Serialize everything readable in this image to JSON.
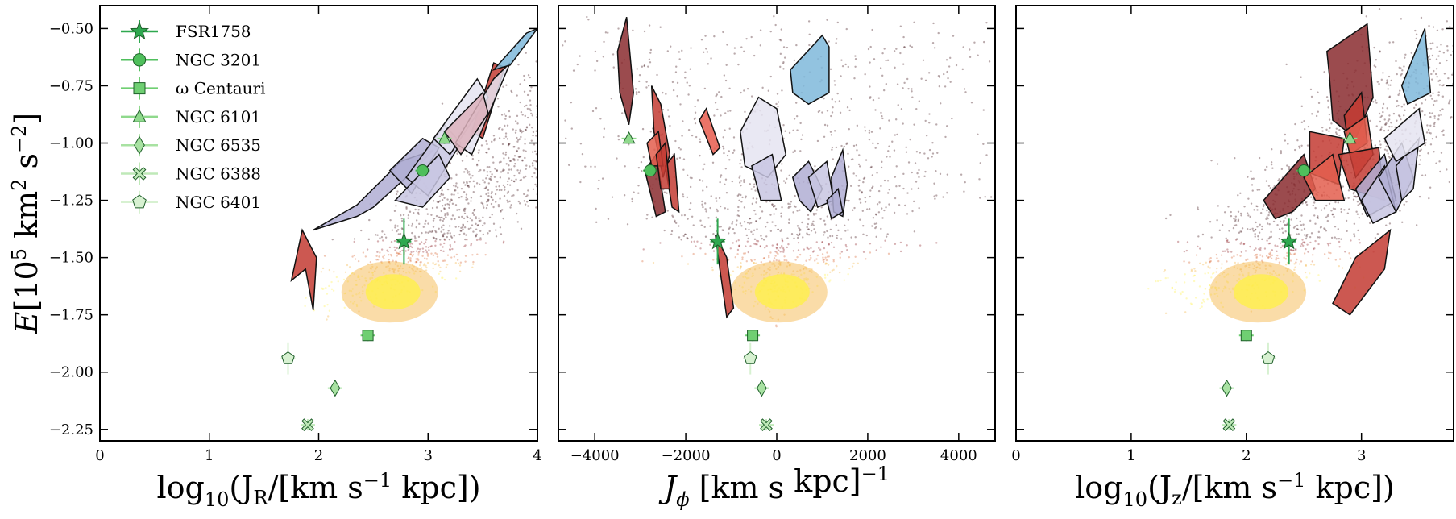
{
  "chart_data": {
    "type": "scatter",
    "shared_y": {
      "label_E": "E",
      "label_unit_a": "[10",
      "label_sup5": "5",
      "label_unit_b": " km",
      "label_sup2": "2",
      "label_unit_c": " s",
      "label_supm2": "−2",
      "label_unit_d": "]",
      "range": [
        -2.3,
        -0.4
      ],
      "ticks": [
        -0.5,
        -0.75,
        -1.0,
        -1.25,
        -1.5,
        -1.75,
        -2.0,
        -2.25
      ],
      "tick_labels": [
        "−0.50",
        "−0.75",
        "−1.00",
        "−1.25",
        "−1.50",
        "−1.75",
        "−2.00",
        "−2.25"
      ]
    },
    "panels": [
      {
        "id": "jr",
        "xlabel_main": "log",
        "xlabel_sub": "10",
        "xlabel_rest": "(J",
        "xlabel_sub2": "R",
        "xlabel_rest2": "/[km s",
        "xlabel_sup": "−1",
        "xlabel_rest3": " kpc])",
        "xlim": [
          0,
          4
        ],
        "xticks": [
          0,
          1,
          2,
          3,
          4
        ],
        "xtick_labels": [
          "0",
          "1",
          "2",
          "3",
          "4"
        ]
      },
      {
        "id": "jphi",
        "xlabel_main": "J",
        "xlabel_sub": "ϕ",
        "xlabel_rest": " [km s",
        "xlabel_sup": "−1",
        "xlabel_rest2": " kpc]",
        "xlim": [
          -4800,
          4800
        ],
        "xticks": [
          -4000,
          -2000,
          0,
          2000,
          4000
        ],
        "xtick_labels": [
          "−4000",
          "−2000",
          "0",
          "2000",
          "4000"
        ]
      },
      {
        "id": "jz",
        "xlabel_main": "log",
        "xlabel_sub": "10",
        "xlabel_rest": "(J",
        "xlabel_sub2": "z",
        "xlabel_rest2": "/[km s",
        "xlabel_sup": "−1",
        "xlabel_rest3": " kpc])",
        "xlim": [
          0,
          3.8
        ],
        "xticks": [
          0,
          1,
          2,
          3
        ],
        "xtick_labels": [
          "0",
          "1",
          "2",
          "3"
        ]
      }
    ],
    "legend": {
      "placement": "top-left",
      "entries": [
        {
          "name": "FSR1758",
          "marker": "star",
          "color": "#2ea84f"
        },
        {
          "name": "NGC 3201",
          "marker": "circle",
          "color": "#4fbf5c"
        },
        {
          "name": "ω Centauri",
          "marker": "square",
          "color": "#6fcf72"
        },
        {
          "name": "NGC 6101",
          "marker": "triangle",
          "color": "#8fd98c"
        },
        {
          "name": "NGC 6535",
          "marker": "diamond",
          "color": "#a8e2a2"
        },
        {
          "name": "NGC 6388",
          "marker": "cross",
          "color": "#bfe9b8"
        },
        {
          "name": "NGC 6401",
          "marker": "pentagon",
          "color": "#d7f1d1"
        }
      ]
    },
    "clusters": [
      {
        "name": "FSR1758",
        "E": -1.43,
        "jr": 2.78,
        "jphi": -1300,
        "jz": 2.37,
        "errE": 0.1
      },
      {
        "name": "NGC 3201",
        "E": -1.12,
        "jr": 2.95,
        "jphi": -2780,
        "jz": 2.5,
        "errE": 0.0
      },
      {
        "name": "ω Centauri",
        "E": -1.84,
        "jr": 2.45,
        "jphi": -530,
        "jz": 2.0,
        "errE": 0.0
      },
      {
        "name": "NGC 6101",
        "E": -0.98,
        "jr": 3.15,
        "jphi": -3250,
        "jz": 2.9,
        "errE": 0.0
      },
      {
        "name": "NGC 6535",
        "E": -2.07,
        "jr": 2.15,
        "jphi": -330,
        "jz": 1.83,
        "errE": 0.0
      },
      {
        "name": "NGC 6388",
        "E": -2.23,
        "jr": 1.9,
        "jphi": -230,
        "jz": 1.85,
        "errE": 0.0
      },
      {
        "name": "NGC 6401",
        "E": -1.94,
        "jr": 1.72,
        "jphi": -580,
        "jz": 2.19,
        "errE": 0.07
      }
    ],
    "density_background": {
      "colormap": [
        "#3a0b12",
        "#8b1f24",
        "#d7602f",
        "#f4b13d",
        "#fff04a"
      ],
      "core": {
        "jr": 2.65,
        "jphi": 50,
        "jz": 2.1,
        "E": -1.65
      }
    },
    "polygons": {
      "jr": [
        {
          "color": "#c33b32",
          "pts": [
            [
              1.75,
              -1.6
            ],
            [
              1.85,
              -1.38
            ],
            [
              1.98,
              -1.5
            ],
            [
              1.95,
              -1.73
            ],
            [
              1.88,
              -1.55
            ]
          ]
        },
        {
          "color": "#c33b32",
          "pts": [
            [
              3.4,
              -0.95
            ],
            [
              3.6,
              -0.65
            ],
            [
              3.7,
              -0.67
            ],
            [
              3.5,
              -0.98
            ]
          ]
        },
        {
          "color": "#b0aed4",
          "pts": [
            [
              1.95,
              -1.38
            ],
            [
              2.35,
              -1.27
            ],
            [
              2.75,
              -1.08
            ],
            [
              3.05,
              -1.03
            ],
            [
              2.8,
              -1.15
            ],
            [
              2.5,
              -1.28
            ],
            [
              2.35,
              -1.32
            ]
          ]
        },
        {
          "color": "#b0aed4",
          "pts": [
            [
              2.65,
              -1.12
            ],
            [
              2.95,
              -0.98
            ],
            [
              3.1,
              -1.02
            ],
            [
              2.85,
              -1.22
            ]
          ]
        },
        {
          "color": "#c8c6e2",
          "pts": [
            [
              2.8,
              -1.15
            ],
            [
              3.15,
              -0.92
            ],
            [
              3.3,
              -1.0
            ],
            [
              3.0,
              -1.23
            ]
          ]
        },
        {
          "color": "#c8c6e2",
          "pts": [
            [
              2.7,
              -1.25
            ],
            [
              3.1,
              -1.05
            ],
            [
              3.2,
              -1.15
            ],
            [
              2.95,
              -1.28
            ]
          ]
        },
        {
          "color": "#e5e4f1",
          "pts": [
            [
              3.05,
              -0.98
            ],
            [
              3.45,
              -0.72
            ],
            [
              3.55,
              -0.8
            ],
            [
              3.2,
              -1.05
            ]
          ]
        },
        {
          "color": "#e5e4f1",
          "pts": [
            [
              3.25,
              -1.0
            ],
            [
              3.6,
              -0.72
            ],
            [
              3.75,
              -0.65
            ],
            [
              3.4,
              -1.05
            ]
          ]
        },
        {
          "color": "#dcb1bc",
          "pts": [
            [
              3.15,
              -0.95
            ],
            [
              3.5,
              -0.78
            ],
            [
              3.55,
              -0.87
            ],
            [
              3.3,
              -1.05
            ]
          ]
        },
        {
          "color": "#7fb8da",
          "pts": [
            [
              3.6,
              -0.68
            ],
            [
              3.9,
              -0.52
            ],
            [
              4.0,
              -0.5
            ],
            [
              3.75,
              -0.66
            ]
          ]
        }
      ],
      "jphi": [
        {
          "color": "#8a2b2f",
          "pts": [
            [
              -3500,
              -0.6
            ],
            [
              -3300,
              -0.45
            ],
            [
              -3150,
              -0.78
            ],
            [
              -3250,
              -0.92
            ],
            [
              -3450,
              -0.78
            ]
          ]
        },
        {
          "color": "#8a2b2f",
          "pts": [
            [
              -2900,
              -1.12
            ],
            [
              -2650,
              -1.05
            ],
            [
              -2450,
              -1.3
            ],
            [
              -2650,
              -1.32
            ]
          ]
        },
        {
          "color": "#c33b32",
          "pts": [
            [
              -2750,
              -0.75
            ],
            [
              -2550,
              -0.83
            ],
            [
              -2350,
              -1.05
            ],
            [
              -2500,
              -1.15
            ],
            [
              -2700,
              -0.95
            ]
          ]
        },
        {
          "color": "#c33b32",
          "pts": [
            [
              -2450,
              -1.1
            ],
            [
              -2250,
              -1.05
            ],
            [
              -2150,
              -1.3
            ],
            [
              -2300,
              -1.28
            ]
          ]
        },
        {
          "color": "#e35e4e",
          "pts": [
            [
              -2850,
              -1.0
            ],
            [
              -2600,
              -0.95
            ],
            [
              -2500,
              -1.1
            ],
            [
              -2750,
              -1.1
            ]
          ]
        },
        {
          "color": "#c33b32",
          "pts": [
            [
              -2650,
              -1.05
            ],
            [
              -2450,
              -1.0
            ],
            [
              -2350,
              -1.2
            ],
            [
              -2550,
              -1.2
            ]
          ]
        },
        {
          "color": "#e85c4e",
          "pts": [
            [
              -1700,
              -0.9
            ],
            [
              -1550,
              -0.85
            ],
            [
              -1250,
              -1.02
            ],
            [
              -1400,
              -1.05
            ]
          ]
        },
        {
          "color": "#c33b32",
          "pts": [
            [
              -1350,
              -1.4
            ],
            [
              -1100,
              -1.5
            ],
            [
              -950,
              -1.72
            ],
            [
              -1100,
              -1.76
            ],
            [
              -1250,
              -1.55
            ]
          ]
        },
        {
          "color": "#e5e4f1",
          "pts": [
            [
              -800,
              -0.95
            ],
            [
              -400,
              -0.8
            ],
            [
              0,
              -0.85
            ],
            [
              200,
              -1.05
            ],
            [
              -200,
              -1.15
            ],
            [
              -700,
              -1.1
            ]
          ]
        },
        {
          "color": "#c8c6e2",
          "pts": [
            [
              -550,
              -1.1
            ],
            [
              -100,
              -1.05
            ],
            [
              100,
              -1.25
            ],
            [
              -350,
              -1.25
            ]
          ]
        },
        {
          "color": "#b0aed4",
          "pts": [
            [
              350,
              -1.15
            ],
            [
              700,
              -1.08
            ],
            [
              1000,
              -1.2
            ],
            [
              750,
              -1.3
            ],
            [
              500,
              -1.25
            ]
          ]
        },
        {
          "color": "#c8c6e2",
          "pts": [
            [
              700,
              -1.15
            ],
            [
              1100,
              -1.08
            ],
            [
              1250,
              -1.25
            ],
            [
              900,
              -1.28
            ]
          ]
        },
        {
          "color": "#b0aed4",
          "pts": [
            [
              1200,
              -1.15
            ],
            [
              1450,
              -1.03
            ],
            [
              1550,
              -1.18
            ],
            [
              1450,
              -1.32
            ],
            [
              1250,
              -1.3
            ]
          ]
        },
        {
          "color": "#b0aed4",
          "pts": [
            [
              1100,
              -1.25
            ],
            [
              1350,
              -1.2
            ],
            [
              1450,
              -1.3
            ],
            [
              1200,
              -1.33
            ]
          ]
        },
        {
          "color": "#7fb8da",
          "pts": [
            [
              300,
              -0.68
            ],
            [
              1000,
              -0.53
            ],
            [
              1150,
              -0.58
            ],
            [
              1150,
              -0.78
            ],
            [
              700,
              -0.83
            ],
            [
              350,
              -0.78
            ]
          ]
        }
      ],
      "jz": [
        {
          "color": "#8a2b2f",
          "pts": [
            [
              2.7,
              -0.6
            ],
            [
              3.05,
              -0.48
            ],
            [
              3.1,
              -0.8
            ],
            [
              2.95,
              -0.98
            ],
            [
              2.75,
              -0.9
            ],
            [
              2.72,
              -0.7
            ]
          ]
        },
        {
          "color": "#c33b32",
          "pts": [
            [
              2.85,
              -0.88
            ],
            [
              3.0,
              -0.78
            ],
            [
              3.05,
              -1.0
            ],
            [
              2.9,
              -1.05
            ]
          ]
        },
        {
          "color": "#e35e4e",
          "pts": [
            [
              2.85,
              -0.95
            ],
            [
              3.05,
              -0.88
            ],
            [
              3.1,
              -1.05
            ],
            [
              2.95,
              -1.15
            ]
          ]
        },
        {
          "color": "#c33b32",
          "pts": [
            [
              2.55,
              -0.95
            ],
            [
              2.85,
              -0.98
            ],
            [
              2.8,
              -1.18
            ],
            [
              2.55,
              -1.13
            ]
          ]
        },
        {
          "color": "#8a2b2f",
          "pts": [
            [
              2.15,
              -1.25
            ],
            [
              2.5,
              -1.05
            ],
            [
              2.6,
              -1.2
            ],
            [
              2.4,
              -1.3
            ],
            [
              2.25,
              -1.33
            ]
          ]
        },
        {
          "color": "#e35e4e",
          "pts": [
            [
              2.5,
              -1.15
            ],
            [
              2.75,
              -1.05
            ],
            [
              2.85,
              -1.25
            ],
            [
              2.6,
              -1.25
            ]
          ]
        },
        {
          "color": "#c33b32",
          "pts": [
            [
              2.8,
              -1.05
            ],
            [
              3.15,
              -1.02
            ],
            [
              3.2,
              -1.25
            ],
            [
              2.9,
              -1.2
            ]
          ]
        },
        {
          "color": "#c33b32",
          "pts": [
            [
              2.75,
              -1.7
            ],
            [
              2.95,
              -1.5
            ],
            [
              3.25,
              -1.38
            ],
            [
              3.2,
              -1.55
            ],
            [
              2.9,
              -1.75
            ]
          ]
        },
        {
          "color": "#b0aed4",
          "pts": [
            [
              2.95,
              -1.2
            ],
            [
              3.2,
              -1.05
            ],
            [
              3.3,
              -1.25
            ],
            [
              3.05,
              -1.32
            ]
          ]
        },
        {
          "color": "#c8c6e2",
          "pts": [
            [
              3.0,
              -1.25
            ],
            [
              3.2,
              -1.1
            ],
            [
              3.3,
              -1.3
            ],
            [
              3.1,
              -1.35
            ]
          ]
        },
        {
          "color": "#b0aed4",
          "pts": [
            [
              3.15,
              -1.15
            ],
            [
              3.35,
              -1.0
            ],
            [
              3.45,
              -1.15
            ],
            [
              3.3,
              -1.3
            ]
          ]
        },
        {
          "color": "#c8c6e2",
          "pts": [
            [
              3.3,
              -1.1
            ],
            [
              3.5,
              -0.98
            ],
            [
              3.45,
              -1.2
            ],
            [
              3.35,
              -1.25
            ]
          ]
        },
        {
          "color": "#e5e4f1",
          "pts": [
            [
              3.2,
              -0.98
            ],
            [
              3.5,
              -0.85
            ],
            [
              3.55,
              -1.0
            ],
            [
              3.3,
              -1.08
            ]
          ]
        },
        {
          "color": "#7fb8da",
          "pts": [
            [
              3.35,
              -0.75
            ],
            [
              3.55,
              -0.5
            ],
            [
              3.6,
              -0.78
            ],
            [
              3.4,
              -0.83
            ]
          ]
        }
      ]
    }
  }
}
